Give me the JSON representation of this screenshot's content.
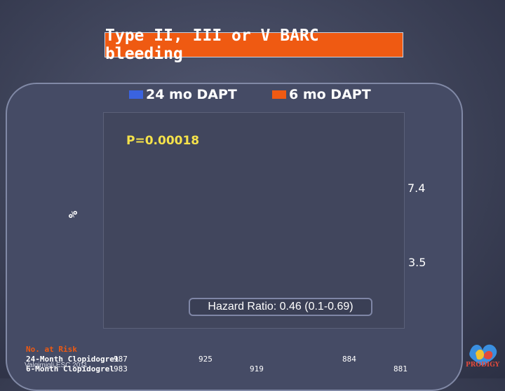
{
  "chart_data": {
    "type": "line",
    "title": "Type II, III or V BARC bleeding",
    "ylabel": "%",
    "series": [
      {
        "name": "24 mo DAPT",
        "color": "#3a63e0",
        "end_value": 7.4
      },
      {
        "name": "6 mo DAPT",
        "color": "#ef5a12",
        "end_value": 3.5
      }
    ],
    "end_labels": [
      "7.4",
      "3.5"
    ],
    "p_value": "P=0.00018",
    "hazard_ratio": "Hazard Ratio: 0.46 (0.1-0.69)",
    "number_at_risk": {
      "title": "No. at Risk",
      "rows": [
        {
          "label": "24-Month Clopidogrel",
          "values": [
            "987",
            "925",
            "884"
          ]
        },
        {
          "label": "6-Month Clopidogrel",
          "values": [
            "983",
            "919",
            "881"
          ]
        }
      ]
    }
  },
  "colors": {
    "accent": "#ef5a12",
    "series_24": "#3a63e0",
    "series_6": "#ef5a12",
    "pvalue": "#f5e24a"
  },
  "citation": "Valgimigli ESC 2011",
  "logo": {
    "icon": "prodigy-logo-icon",
    "text": "PRODIGY"
  }
}
